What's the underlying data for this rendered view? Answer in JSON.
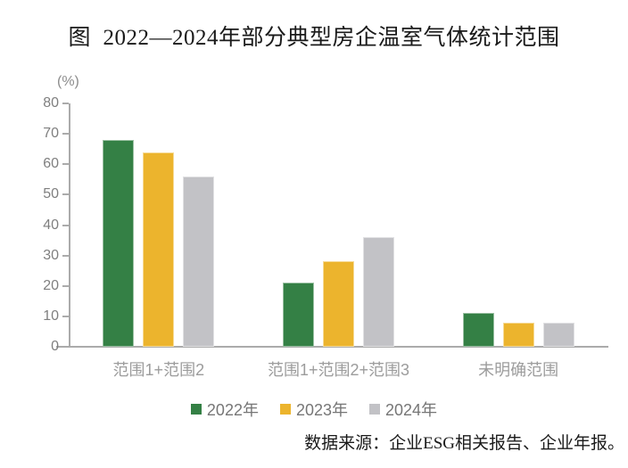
{
  "chart_data": {
    "type": "bar",
    "title": "图  2022—2024年部分典型房企温室气体统计范围",
    "unit_label": "(%)",
    "categories": [
      "范围1+范围2",
      "范围1+范围2+范围3",
      "未明确范围"
    ],
    "series": [
      {
        "name": "2022年",
        "color": "#348045",
        "values": [
          68,
          21,
          11
        ]
      },
      {
        "name": "2023年",
        "color": "#ECB42D",
        "values": [
          64,
          28,
          8
        ]
      },
      {
        "name": "2024年",
        "color": "#C2C2C6",
        "values": [
          56,
          36,
          8
        ]
      }
    ],
    "ylim": [
      0,
      80
    ],
    "ytick_step": 10,
    "grid": false,
    "legend_position": "bottom",
    "source_note": "数据来源：企业ESG相关报告、企业年报。",
    "style": {
      "axis_color": "#ABABAB",
      "tick_label_color": "#7F7F7F",
      "category_label_color": "#9C9C9C",
      "legend_text_color": "#767676",
      "text_color": "#1A1A1A",
      "background": "#FFFFFF"
    }
  }
}
